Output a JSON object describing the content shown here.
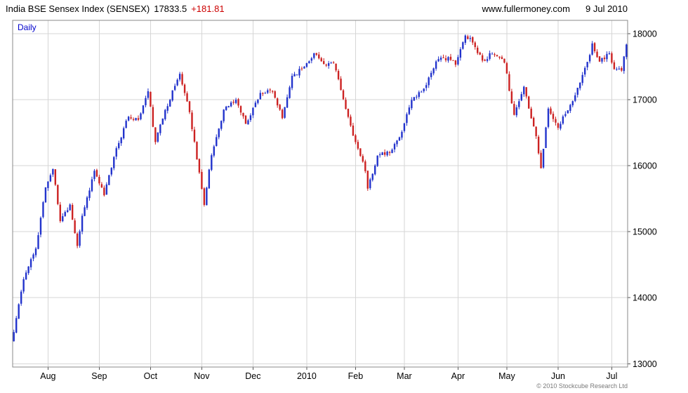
{
  "header": {
    "title": "India BSE Sensex Index (SENSEX)",
    "value": "17833.5",
    "change": "+181.81",
    "website": "www.fullermoney.com",
    "date": "9 Jul 2010"
  },
  "chart": {
    "mode_label": "Daily",
    "copyright": "© 2010 Stockcube Research Ltd",
    "colors": {
      "up": "#2233cc",
      "down": "#cc2222",
      "grid": "#d6d6d6",
      "frame": "#888888",
      "tick": "#555555",
      "label": "#000000"
    }
  },
  "chart_data": {
    "type": "candlestick",
    "title": "India BSE Sensex Index (SENSEX)",
    "interval": "Daily",
    "last_close": 17833.5,
    "change": 181.81,
    "ylim": [
      12950,
      18200
    ],
    "y_ticks": [
      13000,
      14000,
      15000,
      16000,
      17000,
      18000
    ],
    "x_ticks": [
      {
        "label": "Aug",
        "day": 14
      },
      {
        "label": "Sep",
        "day": 35
      },
      {
        "label": "Oct",
        "day": 56
      },
      {
        "label": "Nov",
        "day": 77
      },
      {
        "label": "Dec",
        "day": 98
      },
      {
        "label": "2010",
        "day": 120
      },
      {
        "label": "Feb",
        "day": 140
      },
      {
        "label": "Mar",
        "day": 160
      },
      {
        "label": "Apr",
        "day": 182
      },
      {
        "label": "May",
        "day": 202
      },
      {
        "label": "Jun",
        "day": 223
      },
      {
        "label": "Jul",
        "day": 245
      }
    ],
    "n_days": 252,
    "anchors": [
      [
        0,
        13480
      ],
      [
        2,
        13900
      ],
      [
        4,
        14280
      ],
      [
        9,
        14745
      ],
      [
        13,
        15670
      ],
      [
        16,
        15950
      ],
      [
        19,
        15160
      ],
      [
        23,
        15411
      ],
      [
        26,
        14784
      ],
      [
        28,
        15241
      ],
      [
        33,
        15922
      ],
      [
        37,
        15551
      ],
      [
        42,
        16264
      ],
      [
        47,
        16741
      ],
      [
        51,
        16693
      ],
      [
        55,
        17126
      ],
      [
        58,
        16357
      ],
      [
        62,
        16843
      ],
      [
        68,
        17390
      ],
      [
        72,
        16810
      ],
      [
        76,
        15896
      ],
      [
        78,
        15405
      ],
      [
        81,
        16158
      ],
      [
        86,
        16848
      ],
      [
        91,
        16997
      ],
      [
        95,
        16632
      ],
      [
        101,
        17101
      ],
      [
        106,
        17119
      ],
      [
        110,
        16719
      ],
      [
        114,
        17360
      ],
      [
        118,
        17464
      ],
      [
        123,
        17702
      ],
      [
        127,
        17540
      ],
      [
        131,
        17554
      ],
      [
        136,
        16859
      ],
      [
        140,
        16357
      ],
      [
        144,
        15916
      ],
      [
        145,
        15652
      ],
      [
        149,
        16152
      ],
      [
        154,
        16191
      ],
      [
        158,
        16429
      ],
      [
        163,
        16994
      ],
      [
        168,
        17166
      ],
      [
        173,
        17578
      ],
      [
        178,
        17644
      ],
      [
        181,
        17528
      ],
      [
        185,
        17970
      ],
      [
        187,
        17933
      ],
      [
        192,
        17591
      ],
      [
        196,
        17694
      ],
      [
        201,
        17559
      ],
      [
        205,
        16769
      ],
      [
        209,
        17195
      ],
      [
        214,
        16446
      ],
      [
        216,
        15960
      ],
      [
        219,
        16863
      ],
      [
        223,
        16572
      ],
      [
        226,
        16781
      ],
      [
        230,
        17065
      ],
      [
        235,
        17571
      ],
      [
        237,
        17850
      ],
      [
        240,
        17575
      ],
      [
        244,
        17701
      ],
      [
        246,
        17461
      ],
      [
        249,
        17440
      ],
      [
        251,
        17834
      ]
    ],
    "generation": {
      "seed": 11,
      "close_jitter": 35,
      "open_jitter": 24,
      "wick": 45,
      "hi_clamp": 18055,
      "lo_clamp": 13180
    }
  }
}
